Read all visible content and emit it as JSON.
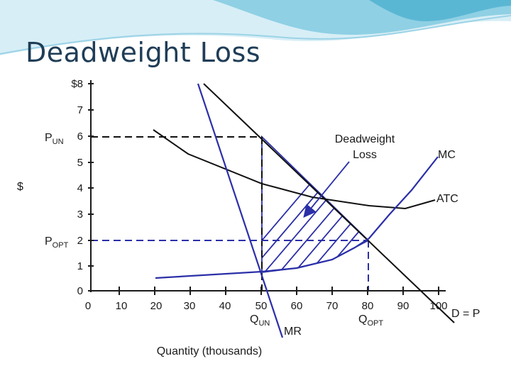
{
  "slide": {
    "title": "Deadweight Loss",
    "banner_colors": [
      "#e9f6fb",
      "#bfe3ef",
      "#7fc6dd",
      "#4fb0cf"
    ]
  },
  "diagram": {
    "y_axis": {
      "label": "$",
      "ticks": [
        "0",
        "1",
        "2",
        "3",
        "4",
        "5",
        "6",
        "7",
        "$8"
      ]
    },
    "x_axis": {
      "title": "Quantity (thousands)",
      "ticks": [
        "0",
        "10",
        "20",
        "30",
        "40",
        "50",
        "60",
        "70",
        "80",
        "90",
        "100"
      ]
    },
    "price_labels": {
      "unregulated": {
        "main": "P",
        "sub": "UN"
      },
      "optimal": {
        "main": "P",
        "sub": "OPT"
      }
    },
    "quantity_labels": {
      "unregulated": {
        "main": "Q",
        "sub": "UN"
      },
      "optimal": {
        "main": "Q",
        "sub": "OPT"
      }
    },
    "curves": {
      "demand": "D = P",
      "marginal_revenue": "MR",
      "marginal_cost": "MC",
      "average_total_cost": "ATC"
    },
    "annotation": {
      "line1": "Deadweight",
      "line2": "Loss"
    },
    "colors": {
      "axis": "#1a1a1a",
      "demand": "#111111",
      "atc": "#111111",
      "mr": "#2b2fa8",
      "mc": "#2b2fa8",
      "hatch": "#2b2fa8",
      "arrow": "#2b2fa8",
      "guide_black": "#111111",
      "guide_blue": "#2b2fa8"
    }
  }
}
